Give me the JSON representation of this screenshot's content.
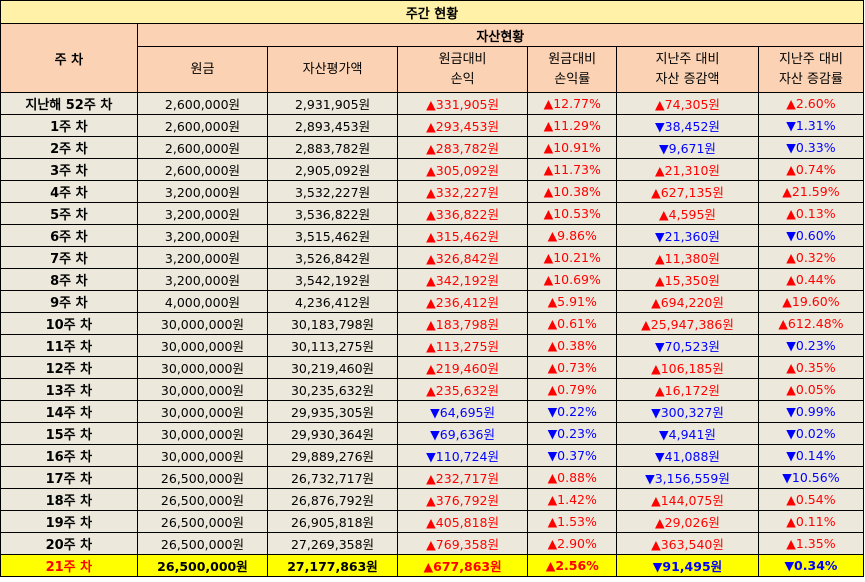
{
  "title": "주간 현황",
  "header": {
    "week_col": "주 차",
    "group": "자산현황",
    "columns": [
      [
        "원금"
      ],
      [
        "자산평가액"
      ],
      [
        "원금대비",
        "손익"
      ],
      [
        "원금대비",
        "손익률"
      ],
      [
        "지난주 대비",
        "자산 증감액"
      ],
      [
        "지난주 대비",
        "자산 증감률"
      ]
    ]
  },
  "colors": {
    "up": "#ff0000",
    "down": "#0000ff",
    "highlight": "#ffff00",
    "header_bg": "#fbd3b4",
    "title_bg": "#fff2a8",
    "row_bg": "#ece9dc"
  },
  "rows": [
    {
      "week": "지난해 52주 차",
      "principal": "2,600,000원",
      "valuation": "2,931,905원",
      "pl": "▲331,905원",
      "pl_rate": "▲12.77%",
      "wow_amt": "▲74,305원",
      "wow_rate": "▲2.60%",
      "dir": [
        "up",
        "up",
        "up",
        "up"
      ]
    },
    {
      "week": "1주 차",
      "principal": "2,600,000원",
      "valuation": "2,893,453원",
      "pl": "▲293,453원",
      "pl_rate": "▲11.29%",
      "wow_amt": "▼38,452원",
      "wow_rate": "▼1.31%",
      "dir": [
        "up",
        "up",
        "down",
        "down"
      ]
    },
    {
      "week": "2주 차",
      "principal": "2,600,000원",
      "valuation": "2,883,782원",
      "pl": "▲283,782원",
      "pl_rate": "▲10.91%",
      "wow_amt": "▼9,671원",
      "wow_rate": "▼0.33%",
      "dir": [
        "up",
        "up",
        "down",
        "down"
      ]
    },
    {
      "week": "3주 차",
      "principal": "2,600,000원",
      "valuation": "2,905,092원",
      "pl": "▲305,092원",
      "pl_rate": "▲11.73%",
      "wow_amt": "▲21,310원",
      "wow_rate": "▲0.74%",
      "dir": [
        "up",
        "up",
        "up",
        "up"
      ]
    },
    {
      "week": "4주 차",
      "principal": "3,200,000원",
      "valuation": "3,532,227원",
      "pl": "▲332,227원",
      "pl_rate": "▲10.38%",
      "wow_amt": "▲627,135원",
      "wow_rate": "▲21.59%",
      "dir": [
        "up",
        "up",
        "up",
        "up"
      ]
    },
    {
      "week": "5주 차",
      "principal": "3,200,000원",
      "valuation": "3,536,822원",
      "pl": "▲336,822원",
      "pl_rate": "▲10.53%",
      "wow_amt": "▲4,595원",
      "wow_rate": "▲0.13%",
      "dir": [
        "up",
        "up",
        "up",
        "up"
      ]
    },
    {
      "week": "6주 차",
      "principal": "3,200,000원",
      "valuation": "3,515,462원",
      "pl": "▲315,462원",
      "pl_rate": "▲9.86%",
      "wow_amt": "▼21,360원",
      "wow_rate": "▼0.60%",
      "dir": [
        "up",
        "up",
        "down",
        "down"
      ]
    },
    {
      "week": "7주 차",
      "principal": "3,200,000원",
      "valuation": "3,526,842원",
      "pl": "▲326,842원",
      "pl_rate": "▲10.21%",
      "wow_amt": "▲11,380원",
      "wow_rate": "▲0.32%",
      "dir": [
        "up",
        "up",
        "up",
        "up"
      ]
    },
    {
      "week": "8주 차",
      "principal": "3,200,000원",
      "valuation": "3,542,192원",
      "pl": "▲342,192원",
      "pl_rate": "▲10.69%",
      "wow_amt": "▲15,350원",
      "wow_rate": "▲0.44%",
      "dir": [
        "up",
        "up",
        "up",
        "up"
      ]
    },
    {
      "week": "9주 차",
      "principal": "4,000,000원",
      "valuation": "4,236,412원",
      "pl": "▲236,412원",
      "pl_rate": "▲5.91%",
      "wow_amt": "▲694,220원",
      "wow_rate": "▲19.60%",
      "dir": [
        "up",
        "up",
        "up",
        "up"
      ]
    },
    {
      "week": "10주 차",
      "principal": "30,000,000원",
      "valuation": "30,183,798원",
      "pl": "▲183,798원",
      "pl_rate": "▲0.61%",
      "wow_amt": "▲25,947,386원",
      "wow_rate": "▲612.48%",
      "dir": [
        "up",
        "up",
        "up",
        "up"
      ]
    },
    {
      "week": "11주 차",
      "principal": "30,000,000원",
      "valuation": "30,113,275원",
      "pl": "▲113,275원",
      "pl_rate": "▲0.38%",
      "wow_amt": "▼70,523원",
      "wow_rate": "▼0.23%",
      "dir": [
        "up",
        "up",
        "down",
        "down"
      ]
    },
    {
      "week": "12주 차",
      "principal": "30,000,000원",
      "valuation": "30,219,460원",
      "pl": "▲219,460원",
      "pl_rate": "▲0.73%",
      "wow_amt": "▲106,185원",
      "wow_rate": "▲0.35%",
      "dir": [
        "up",
        "up",
        "up",
        "up"
      ]
    },
    {
      "week": "13주 차",
      "principal": "30,000,000원",
      "valuation": "30,235,632원",
      "pl": "▲235,632원",
      "pl_rate": "▲0.79%",
      "wow_amt": "▲16,172원",
      "wow_rate": "▲0.05%",
      "dir": [
        "up",
        "up",
        "up",
        "up"
      ]
    },
    {
      "week": "14주 차",
      "principal": "30,000,000원",
      "valuation": "29,935,305원",
      "pl": "▼64,695원",
      "pl_rate": "▼0.22%",
      "wow_amt": "▼300,327원",
      "wow_rate": "▼0.99%",
      "dir": [
        "down",
        "down",
        "down",
        "down"
      ]
    },
    {
      "week": "15주 차",
      "principal": "30,000,000원",
      "valuation": "29,930,364원",
      "pl": "▼69,636원",
      "pl_rate": "▼0.23%",
      "wow_amt": "▼4,941원",
      "wow_rate": "▼0.02%",
      "dir": [
        "down",
        "down",
        "down",
        "down"
      ]
    },
    {
      "week": "16주 차",
      "principal": "30,000,000원",
      "valuation": "29,889,276원",
      "pl": "▼110,724원",
      "pl_rate": "▼0.37%",
      "wow_amt": "▼41,088원",
      "wow_rate": "▼0.14%",
      "dir": [
        "down",
        "down",
        "down",
        "down"
      ]
    },
    {
      "week": "17주 차",
      "principal": "26,500,000원",
      "valuation": "26,732,717원",
      "pl": "▲232,717원",
      "pl_rate": "▲0.88%",
      "wow_amt": "▼3,156,559원",
      "wow_rate": "▼10.56%",
      "dir": [
        "up",
        "up",
        "down",
        "down"
      ]
    },
    {
      "week": "18주 차",
      "principal": "26,500,000원",
      "valuation": "26,876,792원",
      "pl": "▲376,792원",
      "pl_rate": "▲1.42%",
      "wow_amt": "▲144,075원",
      "wow_rate": "▲0.54%",
      "dir": [
        "up",
        "up",
        "up",
        "up"
      ]
    },
    {
      "week": "19주 차",
      "principal": "26,500,000원",
      "valuation": "26,905,818원",
      "pl": "▲405,818원",
      "pl_rate": "▲1.53%",
      "wow_amt": "▲29,026원",
      "wow_rate": "▲0.11%",
      "dir": [
        "up",
        "up",
        "up",
        "up"
      ]
    },
    {
      "week": "20주 차",
      "principal": "26,500,000원",
      "valuation": "27,269,358원",
      "pl": "▲769,358원",
      "pl_rate": "▲2.90%",
      "wow_amt": "▲363,540원",
      "wow_rate": "▲1.35%",
      "dir": [
        "up",
        "up",
        "up",
        "up"
      ]
    },
    {
      "week": "21주 차",
      "principal": "26,500,000원",
      "valuation": "27,177,863원",
      "pl": "▲677,863원",
      "pl_rate": "▲2.56%",
      "wow_amt": "▼91,495원",
      "wow_rate": "▼0.34%",
      "dir": [
        "up",
        "up",
        "down",
        "down"
      ],
      "current": true
    }
  ]
}
